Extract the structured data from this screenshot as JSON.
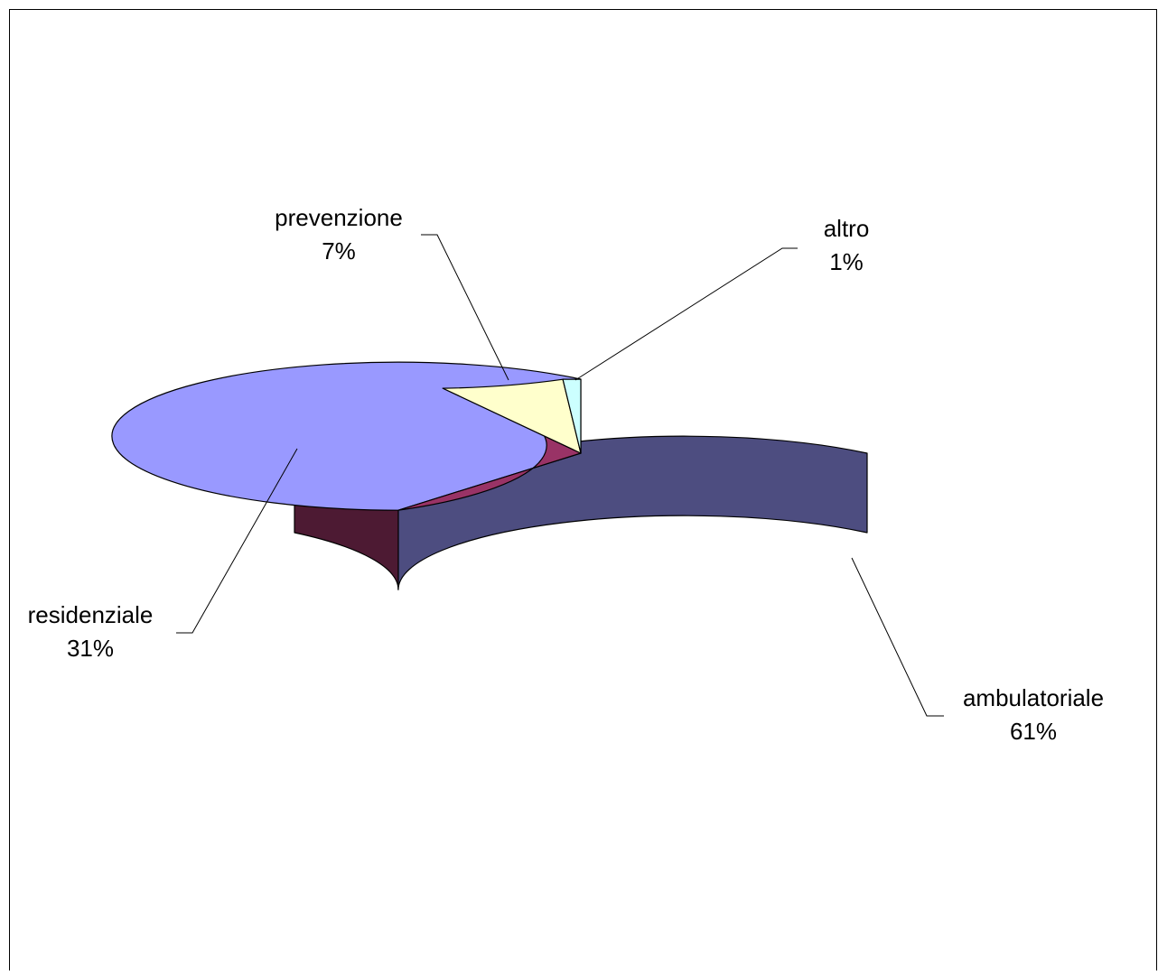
{
  "chart_data": {
    "type": "pie",
    "style": "3d",
    "categories": [
      "ambulatoriale",
      "residenziale",
      "prevenzione",
      "altro"
    ],
    "values": [
      61,
      31,
      7,
      1
    ],
    "labels": [
      {
        "name": "ambulatoriale",
        "pct": "61%"
      },
      {
        "name": "residenziale",
        "pct": "31%"
      },
      {
        "name": "prevenzione",
        "pct": "7%"
      },
      {
        "name": "altro",
        "pct": "1%"
      }
    ],
    "colors": {
      "top": [
        "#9999ff",
        "#993366",
        "#ffffcc",
        "#ccffff"
      ],
      "side": [
        "#4d4d80",
        "#4d1a33",
        "#80806a",
        "#668080"
      ]
    },
    "legend": "none"
  }
}
